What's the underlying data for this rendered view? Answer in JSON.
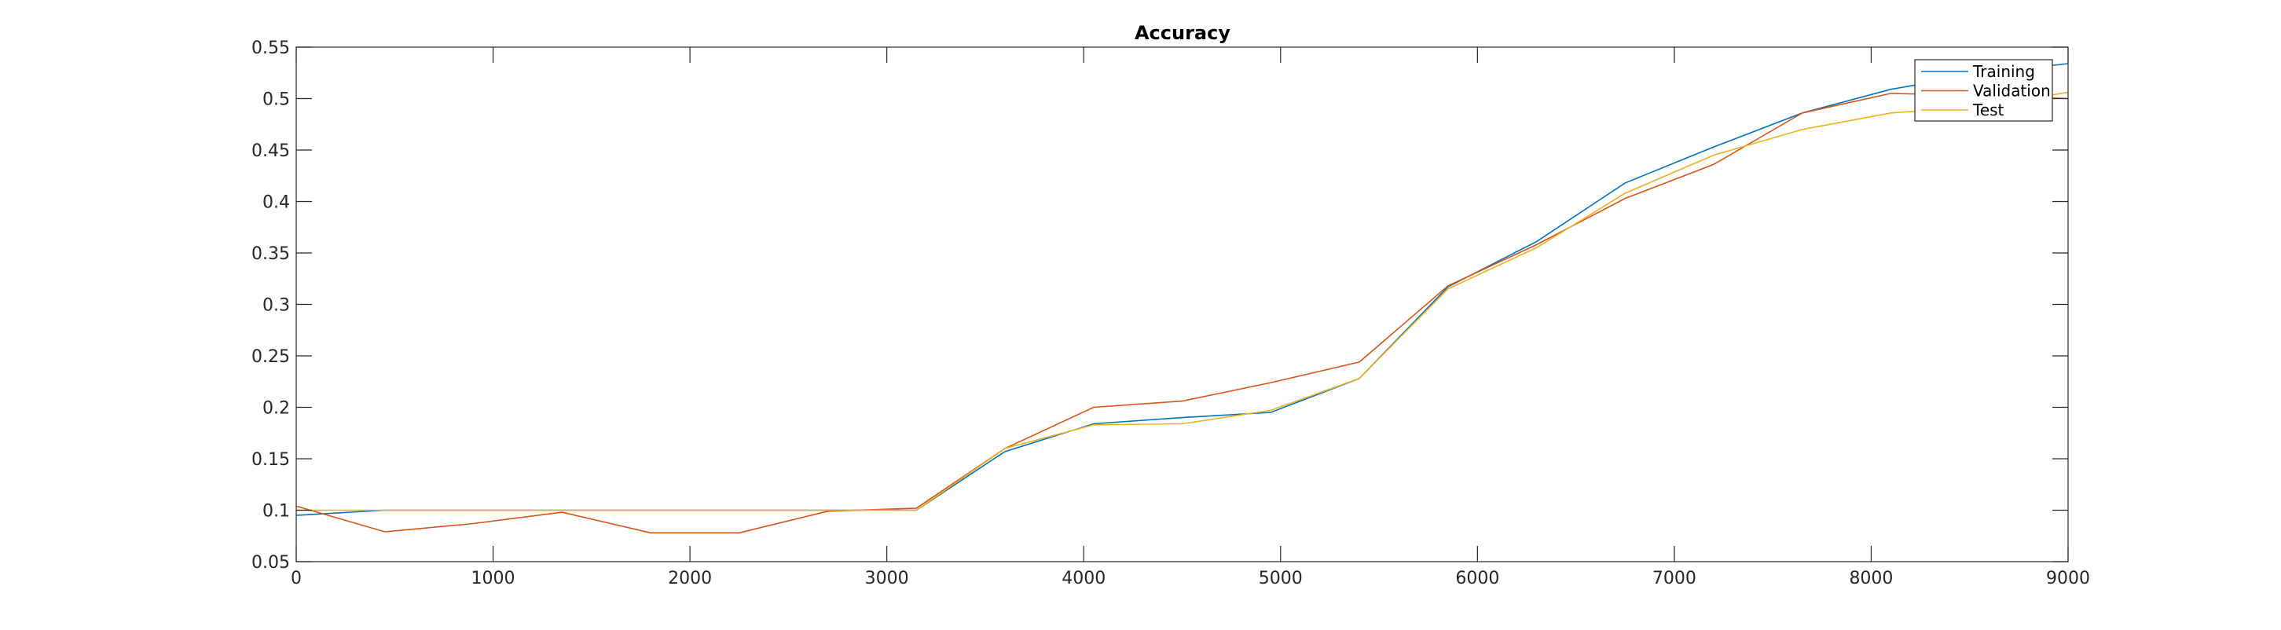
{
  "chart_data": {
    "type": "line",
    "title": "Accuracy",
    "xlabel": "",
    "ylabel": "",
    "xlim": [
      0,
      9000
    ],
    "ylim": [
      0.05,
      0.55
    ],
    "xticks": [
      0,
      1000,
      2000,
      3000,
      4000,
      5000,
      6000,
      7000,
      8000,
      9000
    ],
    "xtick_labels": [
      "0",
      "1000",
      "2000",
      "3000",
      "4000",
      "5000",
      "6000",
      "7000",
      "8000",
      "9000"
    ],
    "yticks": [
      0.05,
      0.1,
      0.15,
      0.2,
      0.25,
      0.3,
      0.35,
      0.4,
      0.45,
      0.5,
      0.55
    ],
    "ytick_labels": [
      "0.05",
      "0.1",
      "0.15",
      "0.2",
      "0.25",
      "0.3",
      "0.35",
      "0.4",
      "0.45",
      "0.5",
      "0.55"
    ],
    "grid": false,
    "legend_position": "top-right",
    "series": [
      {
        "name": "Training",
        "color": "#0072BD",
        "x": [
          0,
          450,
          900,
          1350,
          1800,
          2250,
          2700,
          3150,
          3600,
          4050,
          4500,
          4950,
          5400,
          5850,
          6300,
          6750,
          7200,
          7650,
          8100,
          8550,
          9000
        ],
        "y": [
          0.095,
          0.1,
          0.1,
          0.1,
          0.1,
          0.1,
          0.1,
          0.1,
          0.157,
          0.184,
          0.19,
          0.195,
          0.228,
          0.317,
          0.361,
          0.418,
          0.453,
          0.486,
          0.509,
          0.524,
          0.534
        ]
      },
      {
        "name": "Validation",
        "color": "#D95319",
        "x": [
          0,
          450,
          900,
          1350,
          1800,
          2250,
          2700,
          3150,
          3600,
          4050,
          4500,
          4950,
          5400,
          5850,
          6300,
          6750,
          7200,
          7650,
          8100,
          8550,
          9000
        ],
        "y": [
          0.104,
          0.079,
          0.087,
          0.098,
          0.078,
          0.078,
          0.099,
          0.102,
          0.16,
          0.2,
          0.206,
          0.224,
          0.244,
          0.318,
          0.358,
          0.403,
          0.436,
          0.486,
          0.505,
          0.503,
          0.5
        ]
      },
      {
        "name": "Test",
        "color": "#EDB120",
        "x": [
          0,
          450,
          900,
          1350,
          1800,
          2250,
          2700,
          3150,
          3600,
          4050,
          4500,
          4950,
          5400,
          5850,
          6300,
          6750,
          7200,
          7650,
          8100,
          8550,
          9000
        ],
        "y": [
          0.1,
          0.1,
          0.1,
          0.1,
          0.1,
          0.1,
          0.1,
          0.1,
          0.16,
          0.183,
          0.184,
          0.197,
          0.228,
          0.315,
          0.355,
          0.408,
          0.445,
          0.47,
          0.486,
          0.492,
          0.506
        ]
      }
    ]
  }
}
